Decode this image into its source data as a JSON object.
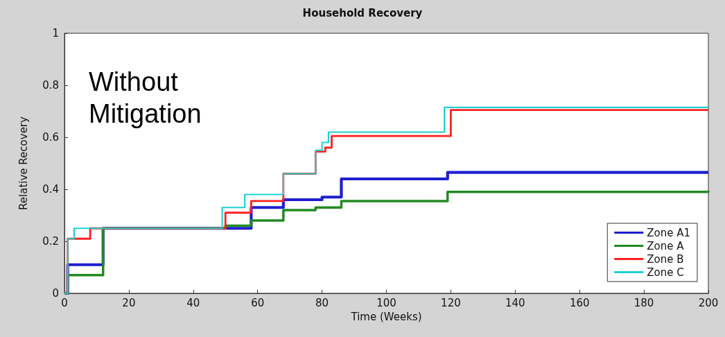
{
  "chart_data": {
    "type": "step",
    "title": "Household Recovery",
    "xlabel": "Time (Weeks)",
    "ylabel": "Relative Recovery",
    "annotations": [
      "Without\nMitigation"
    ],
    "xlim": [
      0,
      200
    ],
    "xticks": [
      0,
      20,
      40,
      60,
      80,
      100,
      120,
      140,
      160,
      180,
      200
    ],
    "ylim": [
      0,
      1
    ],
    "yticks": [
      0,
      0.2,
      0.4,
      0.6,
      0.8,
      1
    ],
    "grid": false,
    "legend": "bottom right",
    "marker": "none",
    "line_style": "solid",
    "series": [
      {
        "name": "Zone A1",
        "color": "#1f1fd0",
        "x": [
          0,
          1,
          12,
          58,
          68,
          80,
          86,
          119,
          200
        ],
        "values": [
          0,
          0.11,
          0.25,
          0.33,
          0.36,
          0.37,
          0.44,
          0.465,
          0.465
        ]
      },
      {
        "name": "Zone A",
        "color": "#228b22",
        "x": [
          0,
          1,
          12,
          50,
          58,
          68,
          78,
          86,
          119,
          200
        ],
        "values": [
          0,
          0.07,
          0.25,
          0.26,
          0.28,
          0.32,
          0.33,
          0.355,
          0.39,
          0.395
        ]
      },
      {
        "name": "Zone B",
        "color": "#ff2020",
        "x": [
          0,
          1,
          8,
          50,
          58,
          68,
          78,
          81,
          83,
          120,
          200
        ],
        "values": [
          0,
          0.21,
          0.25,
          0.31,
          0.355,
          0.46,
          0.545,
          0.56,
          0.605,
          0.705,
          0.705
        ]
      },
      {
        "name": "Zone C",
        "color": "#20d0d0",
        "x": [
          0,
          1,
          3,
          49,
          56,
          68,
          78,
          80,
          82,
          118,
          200
        ],
        "values": [
          0,
          0.21,
          0.25,
          0.33,
          0.38,
          0.46,
          0.55,
          0.58,
          0.62,
          0.715,
          0.715
        ]
      }
    ]
  }
}
